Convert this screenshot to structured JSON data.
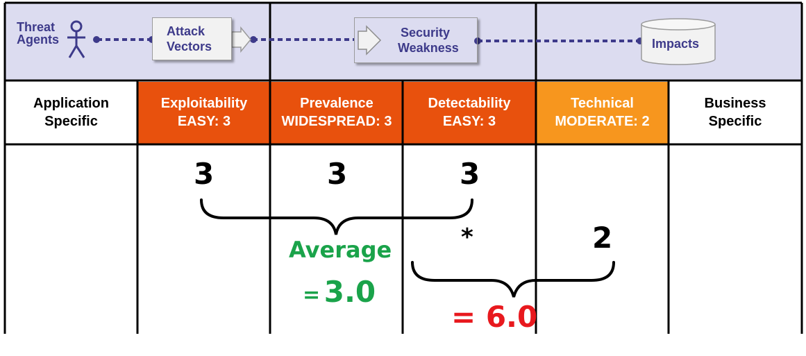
{
  "flow": {
    "threat_agents": [
      "Threat",
      "Agents"
    ],
    "attack_vectors": [
      "Attack",
      "Vectors"
    ],
    "security_weakness": [
      "Security",
      "Weakness"
    ],
    "impacts": "Impacts"
  },
  "header": {
    "application_specific": [
      "Application",
      "Specific"
    ],
    "exploitability": [
      "Exploitability",
      "EASY: 3"
    ],
    "prevalence": [
      "Prevalence",
      "WIDESPREAD: 3"
    ],
    "detectability": [
      "Detectability",
      "EASY: 3"
    ],
    "technical": [
      "Technical",
      "MODERATE: 2"
    ],
    "business_specific": [
      "Business",
      "Specific"
    ]
  },
  "scores": {
    "exploitability": "3",
    "prevalence": "3",
    "detectability": "3",
    "technical": "2",
    "multiply": "*"
  },
  "results": {
    "average_label": "Average",
    "average_value_prefix": "=",
    "average_value": "3.0",
    "product": "= 6.0"
  },
  "colors": {
    "band": "#dcdcf0",
    "flow_dots": "#3d3a8a",
    "orange_dark": "#e8510d",
    "orange_light": "#f7961e",
    "green": "#1aa34a",
    "red": "#e8191e"
  },
  "icons": {
    "threat_agent": "stick-figure-icon",
    "arrow": "right-arrow-icon",
    "impacts": "cylinder-icon"
  }
}
